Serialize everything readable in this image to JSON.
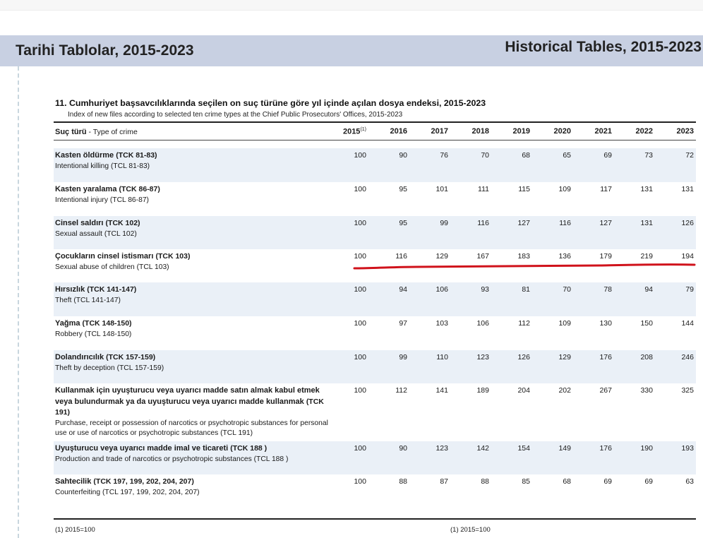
{
  "header": {
    "title_tr": "Tarihi Tablolar, 2015-2023",
    "title_en": "Historical Tables, 2015-2023"
  },
  "table": {
    "title": "11. Cumhuriyet başsavcılıklarında seçilen on suç türüne göre yıl içinde açılan dosya endeksi, 2015-2023",
    "subtitle": "Index of new files according to selected ten crime types at the Chief Public Prosecutors' Offices, 2015-2023",
    "column_label_tr": "Suç türü",
    "column_label_sep": " - ",
    "column_label_en": "Type of crime",
    "years": [
      "2015",
      "2016",
      "2017",
      "2018",
      "2019",
      "2020",
      "2021",
      "2022",
      "2023"
    ],
    "first_year_note": "(1)",
    "rows": [
      {
        "tr": "Kasten öldürme",
        "code": "(TCK 81-83)",
        "en": "Intentional killing (TCL 81-83)",
        "values": [
          "100",
          "90",
          "76",
          "70",
          "68",
          "65",
          "69",
          "73",
          "72"
        ]
      },
      {
        "tr": "Kasten yaralama",
        "code": "(TCK 86-87)",
        "en": "Intentional injury (TCL 86-87)",
        "values": [
          "100",
          "95",
          "101",
          "111",
          "115",
          "109",
          "117",
          "131",
          "131"
        ]
      },
      {
        "tr": "Cinsel saldırı",
        "code": "(TCK 102)",
        "en": "Sexual assault (TCL 102)",
        "values": [
          "100",
          "95",
          "99",
          "116",
          "127",
          "116",
          "127",
          "131",
          "126"
        ]
      },
      {
        "tr": "Çocukların cinsel istismarı",
        "code": "(TCK 103)",
        "en": "Sexual abuse of children (TCL 103)",
        "values": [
          "100",
          "116",
          "129",
          "167",
          "183",
          "136",
          "179",
          "219",
          "194"
        ]
      },
      {
        "tr": "Hırsızlık",
        "code": "(TCK 141-147)",
        "en": "Theft (TCL 141-147)",
        "values": [
          "100",
          "94",
          "106",
          "93",
          "81",
          "70",
          "78",
          "94",
          "79"
        ]
      },
      {
        "tr": "Yağma",
        "code": "(TCK 148-150)",
        "en": "Robbery (TCL 148-150)",
        "values": [
          "100",
          "97",
          "103",
          "106",
          "112",
          "109",
          "130",
          "150",
          "144"
        ]
      },
      {
        "tr": "Dolandırıcılık",
        "code": "(TCK 157-159)",
        "en": "Theft by deception (TCL 157-159)",
        "values": [
          "100",
          "99",
          "110",
          "123",
          "126",
          "129",
          "176",
          "208",
          "246"
        ]
      },
      {
        "tr": "Kullanmak için uyuşturucu veya uyarıcı madde satın almak kabul etmek veya bulundurmak ya da uyuşturucu veya uyarıcı madde kullanmak",
        "code": "(TCK 191)",
        "en": "Purchase, receipt or possession of narcotics or psychotropic substances for personal use or use of narcotics or psychotropic substances (TCL 191)",
        "values": [
          "100",
          "112",
          "141",
          "189",
          "204",
          "202",
          "267",
          "330",
          "325"
        ]
      },
      {
        "tr": "Uyuşturucu veya uyarıcı madde imal ve ticareti",
        "code": "(TCK 188 )",
        "en": "Production and trade of narcotics or psychotropic substances (TCL 188 )",
        "values": [
          "100",
          "90",
          "123",
          "142",
          "154",
          "149",
          "176",
          "190",
          "193"
        ]
      },
      {
        "tr": "Sahtecilik",
        "code": "(TCK 197, 199, 202, 204, 207)",
        "en": "Counterfeiting (TCL 197, 199, 202, 204, 207)",
        "values": [
          "100",
          "88",
          "87",
          "88",
          "85",
          "68",
          "69",
          "69",
          "63"
        ]
      }
    ]
  },
  "footnotes": {
    "left": "(1) 2015=100",
    "right": "(1) 2015=100"
  },
  "colors": {
    "banner": "#c8d0e2",
    "row_shade": "#eaf0f7",
    "annotation": "#d0121b"
  }
}
